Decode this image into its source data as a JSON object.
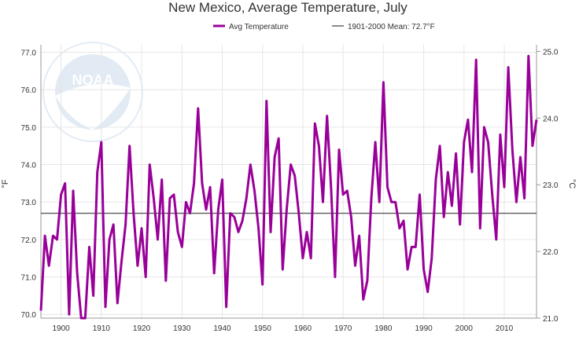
{
  "chart_data": {
    "type": "line",
    "title": "New Mexico, Average Temperature, July",
    "xlabel": "",
    "ylabel": "°F",
    "y2label": "°C",
    "xlim": [
      1895,
      2018
    ],
    "ylim": [
      69.9,
      77.2
    ],
    "y2lim": [
      21.0,
      25.1
    ],
    "xticks": [
      "1900",
      "1910",
      "1920",
      "1930",
      "1940",
      "1950",
      "1960",
      "1970",
      "1980",
      "1990",
      "2000",
      "2010"
    ],
    "yticks": [
      "70.0",
      "71.0",
      "72.0",
      "73.0",
      "74.0",
      "75.0",
      "76.0",
      "77.0"
    ],
    "y2ticks": [
      "21.0",
      "22.0",
      "23.0",
      "24.0",
      "25.0"
    ],
    "grid": true,
    "legend_position": "top-center",
    "legend": [
      "Avg Temperature",
      "1901-2000 Mean: 72.7°F"
    ],
    "colors": {
      "series": "#990099",
      "mean": "#666666"
    },
    "mean": 72.7,
    "series": [
      {
        "name": "Avg Temperature",
        "x": [
          1895,
          1896,
          1897,
          1898,
          1899,
          1900,
          1901,
          1902,
          1903,
          1904,
          1905,
          1906,
          1907,
          1908,
          1909,
          1910,
          1911,
          1912,
          1913,
          1914,
          1915,
          1916,
          1917,
          1918,
          1919,
          1920,
          1921,
          1922,
          1923,
          1924,
          1925,
          1926,
          1927,
          1928,
          1929,
          1930,
          1931,
          1932,
          1933,
          1934,
          1935,
          1936,
          1937,
          1938,
          1939,
          1940,
          1941,
          1942,
          1943,
          1944,
          1945,
          1946,
          1947,
          1948,
          1949,
          1950,
          1951,
          1952,
          1953,
          1954,
          1955,
          1956,
          1957,
          1958,
          1959,
          1960,
          1961,
          1962,
          1963,
          1964,
          1965,
          1966,
          1967,
          1968,
          1969,
          1970,
          1971,
          1972,
          1973,
          1974,
          1975,
          1976,
          1977,
          1978,
          1979,
          1980,
          1981,
          1982,
          1983,
          1984,
          1985,
          1986,
          1987,
          1988,
          1989,
          1990,
          1991,
          1992,
          1993,
          1994,
          1995,
          1996,
          1997,
          1998,
          1999,
          2000,
          2001,
          2002,
          2003,
          2004,
          2005,
          2006,
          2007,
          2008,
          2009,
          2010,
          2011,
          2012,
          2013,
          2014,
          2015,
          2016,
          2017,
          2018
        ],
        "values": [
          70.1,
          72.1,
          71.3,
          72.1,
          72.0,
          73.2,
          73.5,
          70.0,
          73.3,
          71.1,
          69.9,
          69.9,
          71.8,
          70.5,
          73.8,
          74.6,
          70.2,
          72.0,
          72.4,
          70.3,
          71.4,
          72.4,
          74.5,
          72.7,
          71.3,
          72.3,
          71.0,
          74.0,
          73.1,
          72.0,
          73.6,
          70.9,
          73.1,
          73.2,
          72.2,
          71.8,
          73.0,
          72.7,
          73.5,
          75.5,
          73.5,
          72.8,
          73.4,
          71.1,
          72.8,
          73.6,
          70.2,
          72.7,
          72.6,
          72.2,
          72.5,
          73.1,
          74.0,
          73.3,
          72.3,
          70.8,
          75.7,
          72.2,
          74.2,
          74.7,
          71.2,
          72.8,
          74.0,
          73.7,
          72.7,
          71.5,
          72.2,
          71.5,
          75.1,
          74.5,
          73.0,
          75.3,
          73.4,
          71.0,
          74.4,
          73.2,
          73.3,
          72.6,
          71.3,
          72.1,
          70.4,
          70.9,
          73.1,
          74.6,
          73.0,
          76.2,
          73.4,
          73.0,
          73.0,
          72.3,
          72.5,
          71.2,
          71.8,
          71.8,
          73.2,
          71.2,
          70.6,
          71.5,
          73.6,
          74.5,
          72.6,
          73.8,
          72.9,
          74.3,
          72.4,
          74.6,
          75.2,
          73.8,
          76.8,
          72.3,
          75.0,
          74.6,
          73.2,
          72.0,
          74.8,
          73.4,
          76.6,
          74.4,
          73.0,
          74.2,
          73.1,
          76.9,
          74.5,
          75.2
        ]
      }
    ]
  }
}
